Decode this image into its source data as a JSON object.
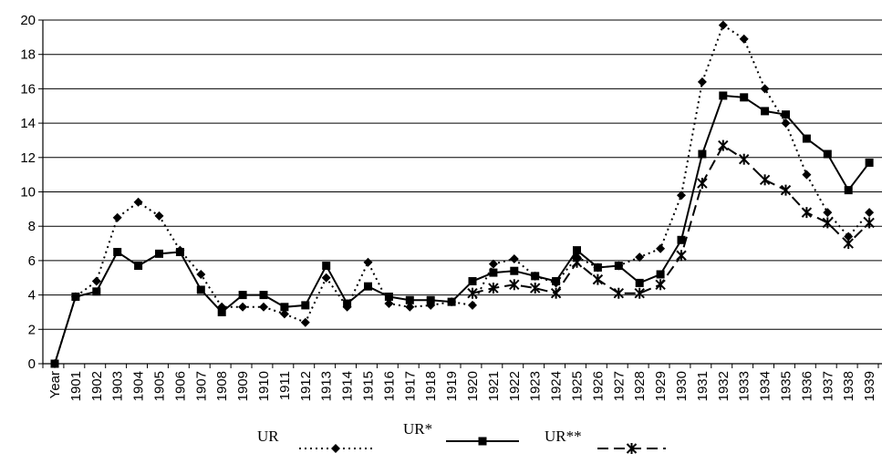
{
  "chart_data": {
    "type": "line",
    "categories": [
      "Year",
      "1901",
      "1902",
      "1903",
      "1904",
      "1905",
      "1906",
      "1907",
      "1908",
      "1909",
      "1910",
      "1911",
      "1912",
      "1913",
      "1914",
      "1915",
      "1916",
      "1917",
      "1918",
      "1919",
      "1920",
      "1921",
      "1922",
      "1923",
      "1924",
      "1925",
      "1926",
      "1927",
      "1928",
      "1929",
      "1930",
      "1931",
      "1932",
      "1933",
      "1934",
      "1935",
      "1936",
      "1937",
      "1938",
      "1939"
    ],
    "ylim": [
      0,
      20
    ],
    "yticks": [
      0,
      2,
      4,
      6,
      8,
      10,
      12,
      14,
      16,
      18,
      20
    ],
    "grid": true,
    "legend_position": "bottom",
    "series": [
      {
        "name": "UR",
        "style": "dotted",
        "marker": "diamond",
        "color": "#000000",
        "values": [
          0,
          3.9,
          4.8,
          8.5,
          9.4,
          8.6,
          6.6,
          5.2,
          3.3,
          3.3,
          3.3,
          2.9,
          2.4,
          5.0,
          3.3,
          5.9,
          3.5,
          3.3,
          3.4,
          3.6,
          3.4,
          5.8,
          6.1,
          5.1,
          4.7,
          6.2,
          5.6,
          5.7,
          6.2,
          6.7,
          9.8,
          16.4,
          19.7,
          18.9,
          16.0,
          14.0,
          11.0,
          8.8,
          7.4,
          8.8
        ]
      },
      {
        "name": "UR*",
        "style": "solid",
        "marker": "square",
        "color": "#000000",
        "values": [
          0,
          3.9,
          4.2,
          6.5,
          5.7,
          6.4,
          6.5,
          4.3,
          3.0,
          4.0,
          4.0,
          3.3,
          3.4,
          5.7,
          3.5,
          4.5,
          3.9,
          3.7,
          3.7,
          3.6,
          4.8,
          5.3,
          5.4,
          5.1,
          4.8,
          6.6,
          5.6,
          5.7,
          4.7,
          5.2,
          7.2,
          12.2,
          15.6,
          15.5,
          14.7,
          14.5,
          13.1,
          12.2,
          10.1,
          11.7
        ]
      },
      {
        "name": "UR**",
        "style": "dashed",
        "marker": "star",
        "color": "#000000",
        "values": [
          null,
          null,
          null,
          null,
          null,
          null,
          null,
          null,
          null,
          null,
          null,
          null,
          null,
          null,
          null,
          null,
          null,
          null,
          null,
          null,
          4.1,
          4.4,
          4.6,
          4.4,
          4.1,
          5.9,
          4.9,
          4.1,
          4.1,
          4.6,
          6.3,
          10.5,
          12.7,
          11.9,
          10.7,
          10.1,
          8.8,
          8.2,
          7.0,
          8.2
        ]
      }
    ]
  }
}
